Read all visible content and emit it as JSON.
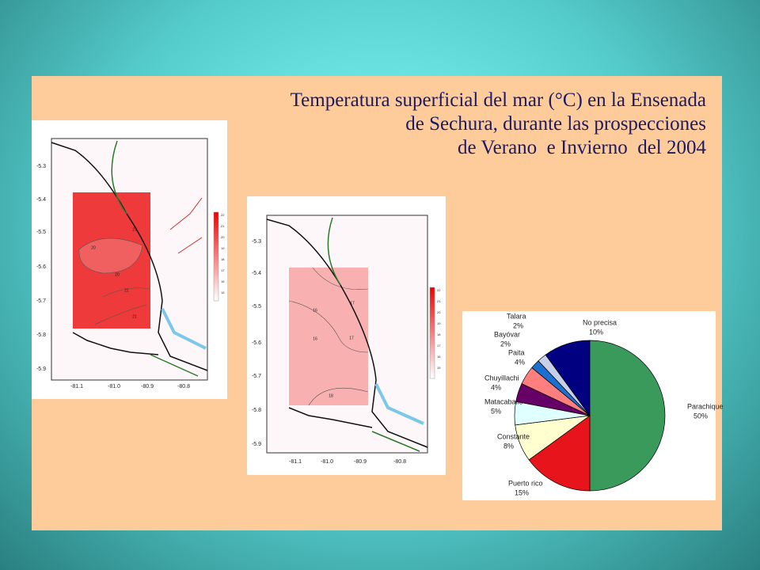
{
  "title": [
    "Temperatura superficial del mar (°C) en la Ensenada",
    "de Sechura, durante las prospecciones",
    "de Verano  e Invierno  del 2004"
  ],
  "maps": [
    {
      "y_labels": [
        "-5.3",
        "-5.4",
        "-5.5",
        "-5.6",
        "-5.7",
        "-5.8",
        "-5.9"
      ],
      "x_labels": [
        "-81.1",
        "-81.0",
        "-80.9",
        "-80.8"
      ],
      "contour_labels": [
        "21",
        "20",
        "20",
        "21",
        "21"
      ],
      "scale_labels": [
        "22",
        "21",
        "20",
        "19",
        "18",
        "17",
        "16",
        "15"
      ]
    },
    {
      "y_labels": [
        "-5.3",
        "-5.4",
        "-5.5",
        "-5.6",
        "-5.7",
        "-5.8",
        "-5.9"
      ],
      "x_labels": [
        "-81.1",
        "-81.0",
        "-80.9",
        "-80.8"
      ],
      "contour_labels": [
        "17",
        "16",
        "17",
        "16",
        "18"
      ],
      "scale_labels": [
        "22",
        "21",
        "20",
        "19",
        "18",
        "17",
        "16",
        "15"
      ]
    }
  ],
  "chart_data": {
    "type": "pie",
    "categories": [
      "Parachique",
      "Puerto rico",
      "Constante",
      "Matacaballo",
      "Chuyillachi",
      "Paita",
      "Bayóvar",
      "Talara",
      "No precisa"
    ],
    "values": [
      50,
      15,
      8,
      5,
      4,
      4,
      2,
      2,
      10
    ],
    "value_labels": [
      "50%",
      "15%",
      "8%",
      "5%",
      "4%",
      "4%",
      "2%",
      "2%",
      "10%"
    ],
    "colors": [
      "#3a9a5c",
      "#e8141c",
      "#ffffd0",
      "#e0ffff",
      "#660066",
      "#ff7f7f",
      "#1f6fcf",
      "#c8d0e8",
      "#000080"
    ]
  }
}
